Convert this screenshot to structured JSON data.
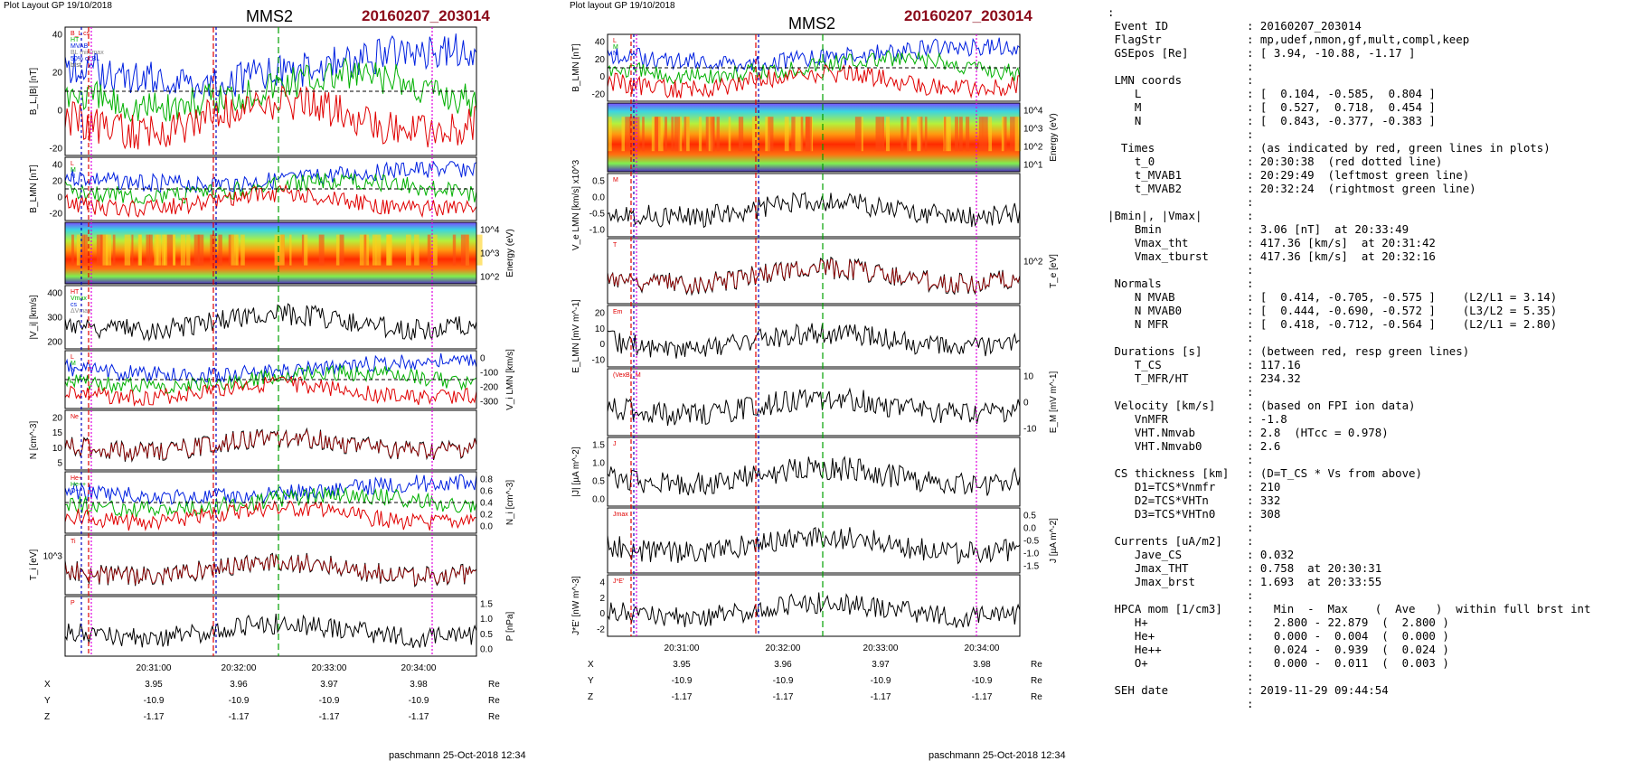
{
  "left_panel": {
    "header": "Plot Layout GP 19/10/2018",
    "spacecraft": "MMS2",
    "event": "20160207_203014",
    "footer": "paschmann 25-Oct-2018 12:34",
    "panels": [
      {
        "ylabel": "B_L,|B| [nT]",
        "ticks": [
          "40",
          "20",
          "0",
          "-20"
        ],
        "side": "left",
        "legend": [
          "B_L cs",
          "HT",
          "MVAB",
          "BL min/max",
          "50% of BL",
          "brst"
        ]
      },
      {
        "ylabel": "B_LMN [nT]",
        "ticks": [
          "40",
          "20",
          "0",
          "-20"
        ],
        "side": "left",
        "legend": [
          "L",
          "M",
          "N"
        ]
      },
      {
        "ylabel": "Energy (eV)",
        "ticks": [
          "10^4",
          "10^3",
          "10^2"
        ],
        "side": "right",
        "legend": []
      },
      {
        "ylabel": "|V_i| [km/s]",
        "ticks": [
          "400",
          "300",
          "200"
        ],
        "side": "left",
        "legend": [
          "HT",
          "Vmax",
          "cs",
          "ΔVmax"
        ]
      },
      {
        "ylabel": "V_i LMN [km/s]",
        "ticks": [
          "0",
          "-100",
          "-200",
          "-300"
        ],
        "side": "right",
        "legend": [
          "L",
          "M",
          "N"
        ]
      },
      {
        "ylabel": "N [cm^-3]",
        "ticks": [
          "20",
          "15",
          "10",
          "5"
        ],
        "side": "left",
        "legend": [
          "Ne"
        ]
      },
      {
        "ylabel": "N_i [cm^-3]",
        "ticks": [
          "0.8",
          "0.6",
          "0.4",
          "0.2",
          "0.0"
        ],
        "side": "right",
        "legend": [
          "He+",
          "He++",
          "O+"
        ]
      },
      {
        "ylabel": "T_i [eV]",
        "ticks": [
          "10^3"
        ],
        "side": "left",
        "legend": [
          "Ti"
        ]
      },
      {
        "ylabel": "P [nPa]",
        "ticks": [
          "1.5",
          "1.0",
          "0.5",
          "0.0"
        ],
        "side": "right",
        "legend": [
          "P"
        ]
      }
    ],
    "time_ticks": [
      "20:31:00",
      "20:32:00",
      "20:33:00",
      "20:34:00"
    ],
    "coords": [
      {
        "label": "X",
        "values": [
          "3.95",
          "3.96",
          "3.97",
          "3.98"
        ],
        "unit": "Re"
      },
      {
        "label": "Y",
        "values": [
          "-10.9",
          "-10.9",
          "-10.9",
          "-10.9"
        ],
        "unit": "Re"
      },
      {
        "label": "Z",
        "values": [
          "-1.17",
          "-1.17",
          "-1.17",
          "-1.17"
        ],
        "unit": "Re"
      }
    ]
  },
  "right_panel": {
    "header": "Plot layout GP 19/10/2018",
    "spacecraft": "MMS2",
    "event": "20160207_203014",
    "footer": "paschmann 25-Oct-2018 12:34",
    "panels": [
      {
        "ylabel": "B_LMN [nT]",
        "ticks": [
          "40",
          "20",
          "0",
          "-20"
        ],
        "side": "left",
        "legend": [
          "L",
          "M",
          "N"
        ]
      },
      {
        "ylabel": "Energy (eV)",
        "ticks": [
          "10^4",
          "10^3",
          "10^2",
          "10^1"
        ],
        "side": "right",
        "legend": []
      },
      {
        "ylabel": "V_e LMN [km/s] x10^3",
        "ticks": [
          "0.5",
          "0.0",
          "-0.5",
          "-1.0"
        ],
        "side": "left",
        "legend": [
          "M"
        ]
      },
      {
        "ylabel": "T_e [eV]",
        "ticks": [
          "10^2"
        ],
        "side": "right",
        "legend": [
          "T"
        ]
      },
      {
        "ylabel": "E_LMN [mV m^-1]",
        "ticks": [
          "20",
          "10",
          "0",
          "-10"
        ],
        "side": "left",
        "legend": [
          "Em"
        ]
      },
      {
        "ylabel": "E_M [mV m^-1]",
        "ticks": [
          "10",
          "0",
          "-10"
        ],
        "side": "right",
        "legend": [
          "(VexB)_M"
        ]
      },
      {
        "ylabel": "|J| [µA m^-2]",
        "ticks": [
          "1.5",
          "1.0",
          "0.5",
          "0.0"
        ],
        "side": "left",
        "legend": [
          "J"
        ]
      },
      {
        "ylabel": "J [µA m^-2]",
        "ticks": [
          "0.5",
          "0.0",
          "-0.5",
          "-1.0",
          "-1.5"
        ],
        "side": "right",
        "legend": [
          "Jmax"
        ]
      },
      {
        "ylabel": "J*E' [nW m^-3]",
        "ticks": [
          "4",
          "2",
          "0",
          "-2"
        ],
        "side": "left",
        "legend": [
          "J*E'"
        ]
      }
    ],
    "time_ticks": [
      "20:31:00",
      "20:32:00",
      "20:33:00",
      "20:34:00"
    ],
    "coords": [
      {
        "label": "X",
        "values": [
          "3.95",
          "3.96",
          "3.97",
          "3.98"
        ],
        "unit": "Re"
      },
      {
        "label": "Y",
        "values": [
          "-10.9",
          "-10.9",
          "-10.9",
          "-10.9"
        ],
        "unit": "Re"
      },
      {
        "label": "Z",
        "values": [
          "-1.17",
          "-1.17",
          "-1.17",
          "-1.17"
        ],
        "unit": "Re"
      }
    ]
  },
  "info_rows": [
    {
      "label": ":",
      "value": ""
    },
    {
      "label": " Event ID",
      "value": ": 20160207_203014"
    },
    {
      "label": " FlagStr",
      "value": ": mp,udef,nmon,gf,mult,compl,keep"
    },
    {
      "label": " GSEpos [Re]",
      "value": ": [ 3.94, -10.88, -1.17 ]"
    },
    {
      "label": "",
      "value": ":"
    },
    {
      "label": " LMN coords",
      "value": ":"
    },
    {
      "label": "    L",
      "value": ": [  0.104, -0.585,  0.804 ]"
    },
    {
      "label": "    M",
      "value": ": [  0.527,  0.718,  0.454 ]"
    },
    {
      "label": "    N",
      "value": ": [  0.843, -0.377, -0.383 ]"
    },
    {
      "label": "",
      "value": ":"
    },
    {
      "label": "  Times",
      "value": ": (as indicated by red, green lines in plots)"
    },
    {
      "label": "    t_0",
      "value": ": 20:30:38  (red dotted line)"
    },
    {
      "label": "    t_MVAB1",
      "value": ": 20:29:49  (leftmost green line)"
    },
    {
      "label": "    t_MVAB2",
      "value": ": 20:32:24  (rightmost green line)"
    },
    {
      "label": "",
      "value": ":"
    },
    {
      "label": "|Bmin|, |Vmax|",
      "value": ":"
    },
    {
      "label": "    Bmin",
      "value": ": 3.06 [nT]  at 20:33:49"
    },
    {
      "label": "    Vmax_tht",
      "value": ": 417.36 [km/s]  at 20:31:42"
    },
    {
      "label": "    Vmax_tburst",
      "value": ": 417.36 [km/s]  at 20:32:16"
    },
    {
      "label": "",
      "value": ":"
    },
    {
      "label": " Normals",
      "value": ":"
    },
    {
      "label": "    N MVAB",
      "value": ": [  0.414, -0.705, -0.575 ]    (L2/L1 = 3.14)"
    },
    {
      "label": "    N MVAB0",
      "value": ": [  0.444, -0.690, -0.572 ]    (L3/L2 = 5.35)"
    },
    {
      "label": "    N MFR",
      "value": ": [  0.418, -0.712, -0.564 ]    (L2/L1 = 2.80)"
    },
    {
      "label": "",
      "value": ":"
    },
    {
      "label": " Durations [s]",
      "value": ": (between red, resp green lines)"
    },
    {
      "label": "    T_CS",
      "value": ": 117.16"
    },
    {
      "label": "    T_MFR/HT",
      "value": ": 234.32"
    },
    {
      "label": "",
      "value": ":"
    },
    {
      "label": " Velocity [km/s]",
      "value": ": (based on FPI ion data)"
    },
    {
      "label": "    VnMFR",
      "value": ": -1.8"
    },
    {
      "label": "    VHT.Nmvab",
      "value": ": 2.8  (HTcc = 0.978)"
    },
    {
      "label": "    VHT.Nmvab0",
      "value": ": 2.6"
    },
    {
      "label": "",
      "value": ":"
    },
    {
      "label": " CS thickness [km]",
      "value": ": (D=T_CS * Vs from above)"
    },
    {
      "label": "    D1=TCS*Vnmfr",
      "value": ": 210"
    },
    {
      "label": "    D2=TCS*VHTn",
      "value": ": 332"
    },
    {
      "label": "    D3=TCS*VHTn0",
      "value": ": 308"
    },
    {
      "label": "",
      "value": ":"
    },
    {
      "label": " Currents [uA/m2]",
      "value": ":"
    },
    {
      "label": "    Jave_CS",
      "value": ": 0.032"
    },
    {
      "label": "    Jmax_THT",
      "value": ": 0.758  at 20:30:31"
    },
    {
      "label": "    Jmax_brst",
      "value": ": 1.693  at 20:33:55"
    },
    {
      "label": "",
      "value": ":"
    },
    {
      "label": " HPCA mom [1/cm3]",
      "value": ":   Min  -  Max    (  Ave   )  within full brst int"
    },
    {
      "label": "    H+",
      "value": ":   2.800 - 22.879  (  2.800 )"
    },
    {
      "label": "    He+",
      "value": ":   0.000 -  0.004  (  0.000 )"
    },
    {
      "label": "    He++",
      "value": ":   0.024 -  0.939  (  0.024 )"
    },
    {
      "label": "    O+",
      "value": ":   0.000 -  0.011  (  0.003 )"
    },
    {
      "label": "",
      "value": ":"
    },
    {
      "label": " SEH date",
      "value": ": 2019-11-29 09:44:54"
    },
    {
      "label": "",
      "value": ":"
    }
  ],
  "colors": {
    "L": "#e00000",
    "M": "#00b000",
    "N": "#0020e0",
    "event": "#8b0a1a",
    "marker_red": "#e00000",
    "marker_blue": "#0000c0",
    "marker_green": "#00a000",
    "marker_magenta": "#e000e0"
  },
  "chart_data": {
    "type": "line",
    "title": "MMS2 20160207_203014",
    "x_ticks": [
      "20:31:00",
      "20:32:00",
      "20:33:00",
      "20:34:00"
    ],
    "note_series": [
      "B_L",
      "|B|",
      "B_LMN",
      "V_i",
      "N",
      "N_i",
      "T_i",
      "P",
      "V_e",
      "T_e",
      "E_LMN",
      "E_M",
      "|J|",
      "J",
      "J*E'"
    ]
  }
}
